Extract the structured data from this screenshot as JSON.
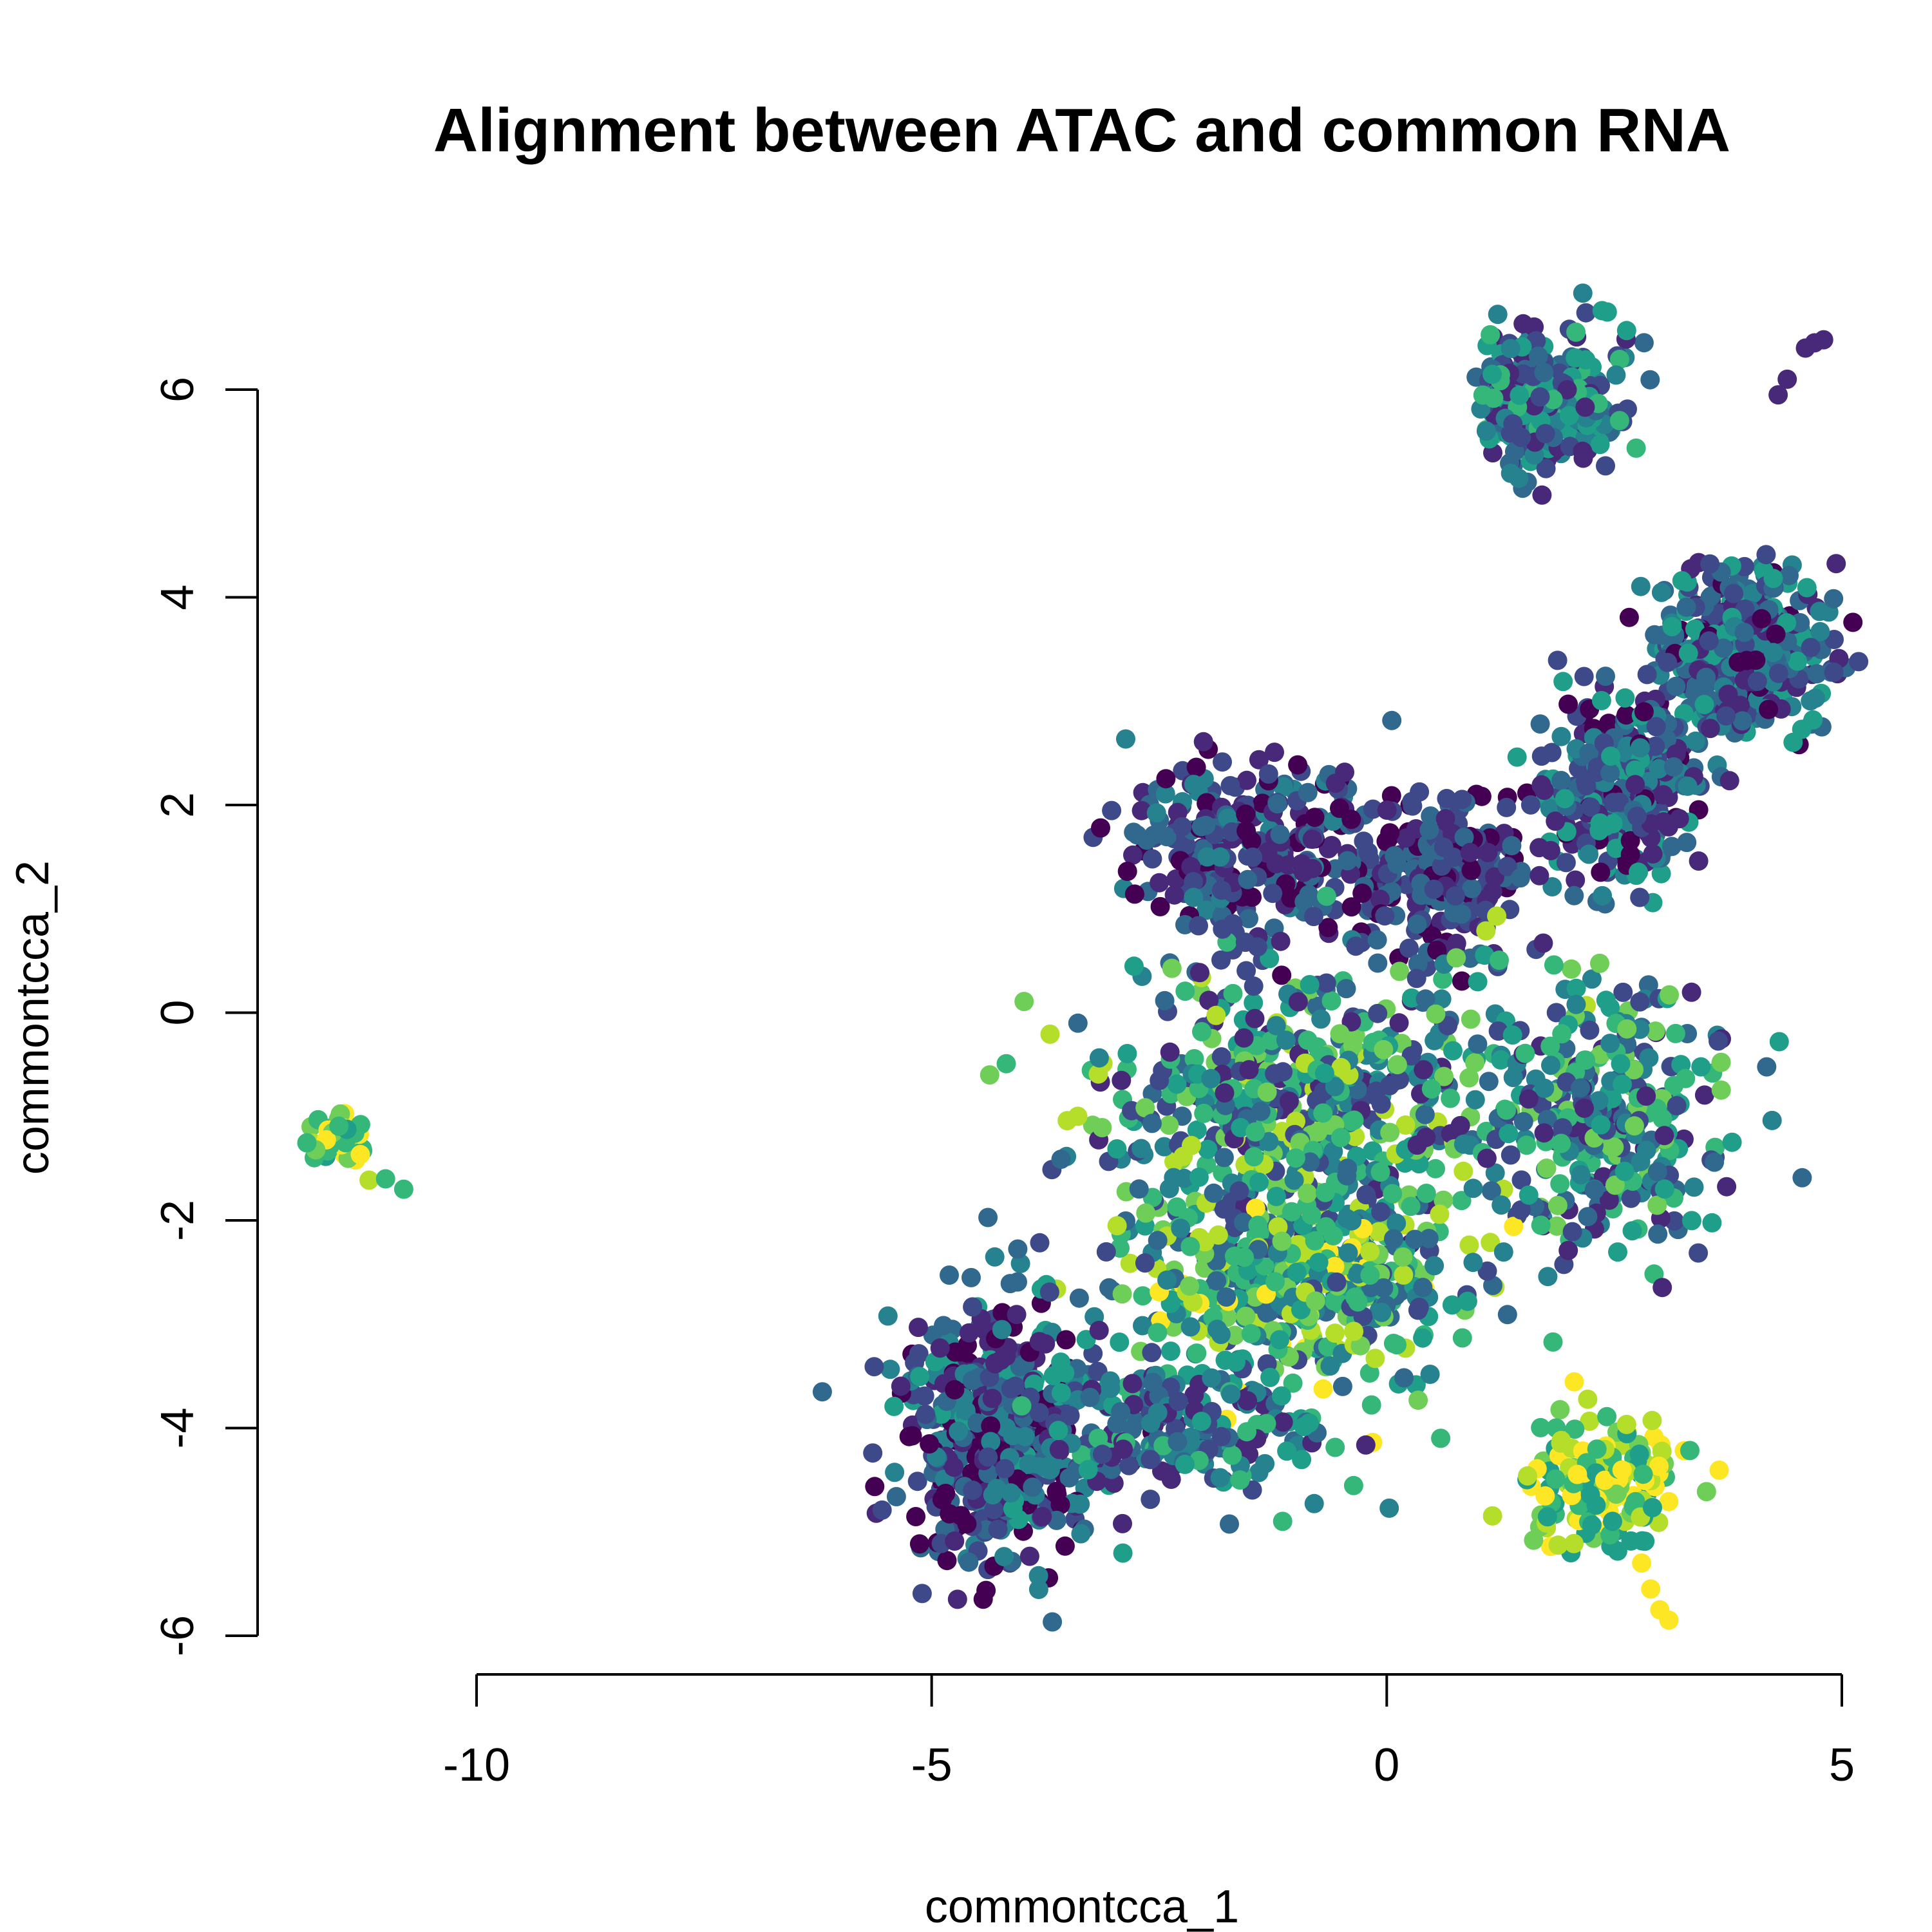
{
  "chart_data": {
    "type": "scatter",
    "title": "Alignment between ATAC and common RNA",
    "xlabel": "commontcca_1",
    "ylabel": "commontcca_2",
    "xlim": [
      -12.3,
      5.0
    ],
    "ylim": [
      -6.0,
      6.7
    ],
    "x_ticks": [
      -10,
      -5,
      0,
      5
    ],
    "x_tick_labels": [
      "-10",
      "-5",
      "0",
      "5"
    ],
    "y_ticks": [
      -6,
      -4,
      -2,
      0,
      2,
      4,
      6
    ],
    "y_tick_labels": [
      "-6",
      "-4",
      "-2",
      "0",
      "2",
      "4",
      "6"
    ],
    "grid": false,
    "legend": "none",
    "palette": [
      "#440154",
      "#482878",
      "#3e4989",
      "#31688e",
      "#26828e",
      "#1f9e89",
      "#35b779",
      "#6ece58",
      "#b5de2b",
      "#fde725"
    ],
    "clusters": [
      {
        "x": 1.8,
        "y": 5.9,
        "sx": 0.45,
        "sy": 0.35,
        "weight": 0.09,
        "hue": [
          0.1,
          0.7
        ]
      },
      {
        "x": 3.9,
        "y": 3.5,
        "sx": 0.55,
        "sy": 0.45,
        "weight": 0.1,
        "hue": [
          0.05,
          0.6
        ]
      },
      {
        "x": 2.6,
        "y": 2.2,
        "sx": 0.5,
        "sy": 0.55,
        "weight": 0.08,
        "hue": [
          0.05,
          0.6
        ]
      },
      {
        "x": -1.5,
        "y": 1.6,
        "sx": 0.8,
        "sy": 0.5,
        "weight": 0.07,
        "hue": [
          0.0,
          0.45
        ]
      },
      {
        "x": 0.6,
        "y": 1.3,
        "sx": 0.6,
        "sy": 0.45,
        "weight": 0.05,
        "hue": [
          0.0,
          0.4
        ]
      },
      {
        "x": -0.8,
        "y": -0.9,
        "sx": 1.3,
        "sy": 0.8,
        "weight": 0.14,
        "hue": [
          0.1,
          0.85
        ]
      },
      {
        "x": -1.0,
        "y": -2.6,
        "sx": 1.1,
        "sy": 0.6,
        "weight": 0.11,
        "hue": [
          0.25,
          0.95
        ]
      },
      {
        "x": -4.3,
        "y": -4.1,
        "sx": 0.6,
        "sy": 0.7,
        "weight": 0.12,
        "hue": [
          0.0,
          0.55
        ]
      },
      {
        "x": -2.4,
        "y": -4.0,
        "sx": 0.9,
        "sy": 0.4,
        "weight": 0.05,
        "hue": [
          0.1,
          0.7
        ]
      },
      {
        "x": 2.4,
        "y": -1.0,
        "sx": 0.7,
        "sy": 0.8,
        "weight": 0.07,
        "hue": [
          0.1,
          0.8
        ]
      },
      {
        "x": 2.4,
        "y": -4.5,
        "sx": 0.5,
        "sy": 0.35,
        "weight": 0.04,
        "hue": [
          0.5,
          1.0
        ]
      },
      {
        "x": -11.5,
        "y": -1.25,
        "sx": 0.2,
        "sy": 0.2,
        "weight": 0.01,
        "hue": [
          0.55,
          1.0
        ]
      }
    ],
    "tail_points": [
      {
        "x": 4.6,
        "y": 6.4
      },
      {
        "x": 4.7,
        "y": 6.45
      },
      {
        "x": 4.8,
        "y": 6.48
      },
      {
        "x": 4.4,
        "y": 6.1
      },
      {
        "x": 4.3,
        "y": 5.95
      },
      {
        "x": 2.8,
        "y": -5.3
      },
      {
        "x": 2.9,
        "y": -5.55
      },
      {
        "x": 3.0,
        "y": -5.75
      },
      {
        "x": 3.1,
        "y": -5.85
      },
      {
        "x": -10.8,
        "y": -1.7
      },
      {
        "x": -11.0,
        "y": -1.6
      }
    ]
  }
}
